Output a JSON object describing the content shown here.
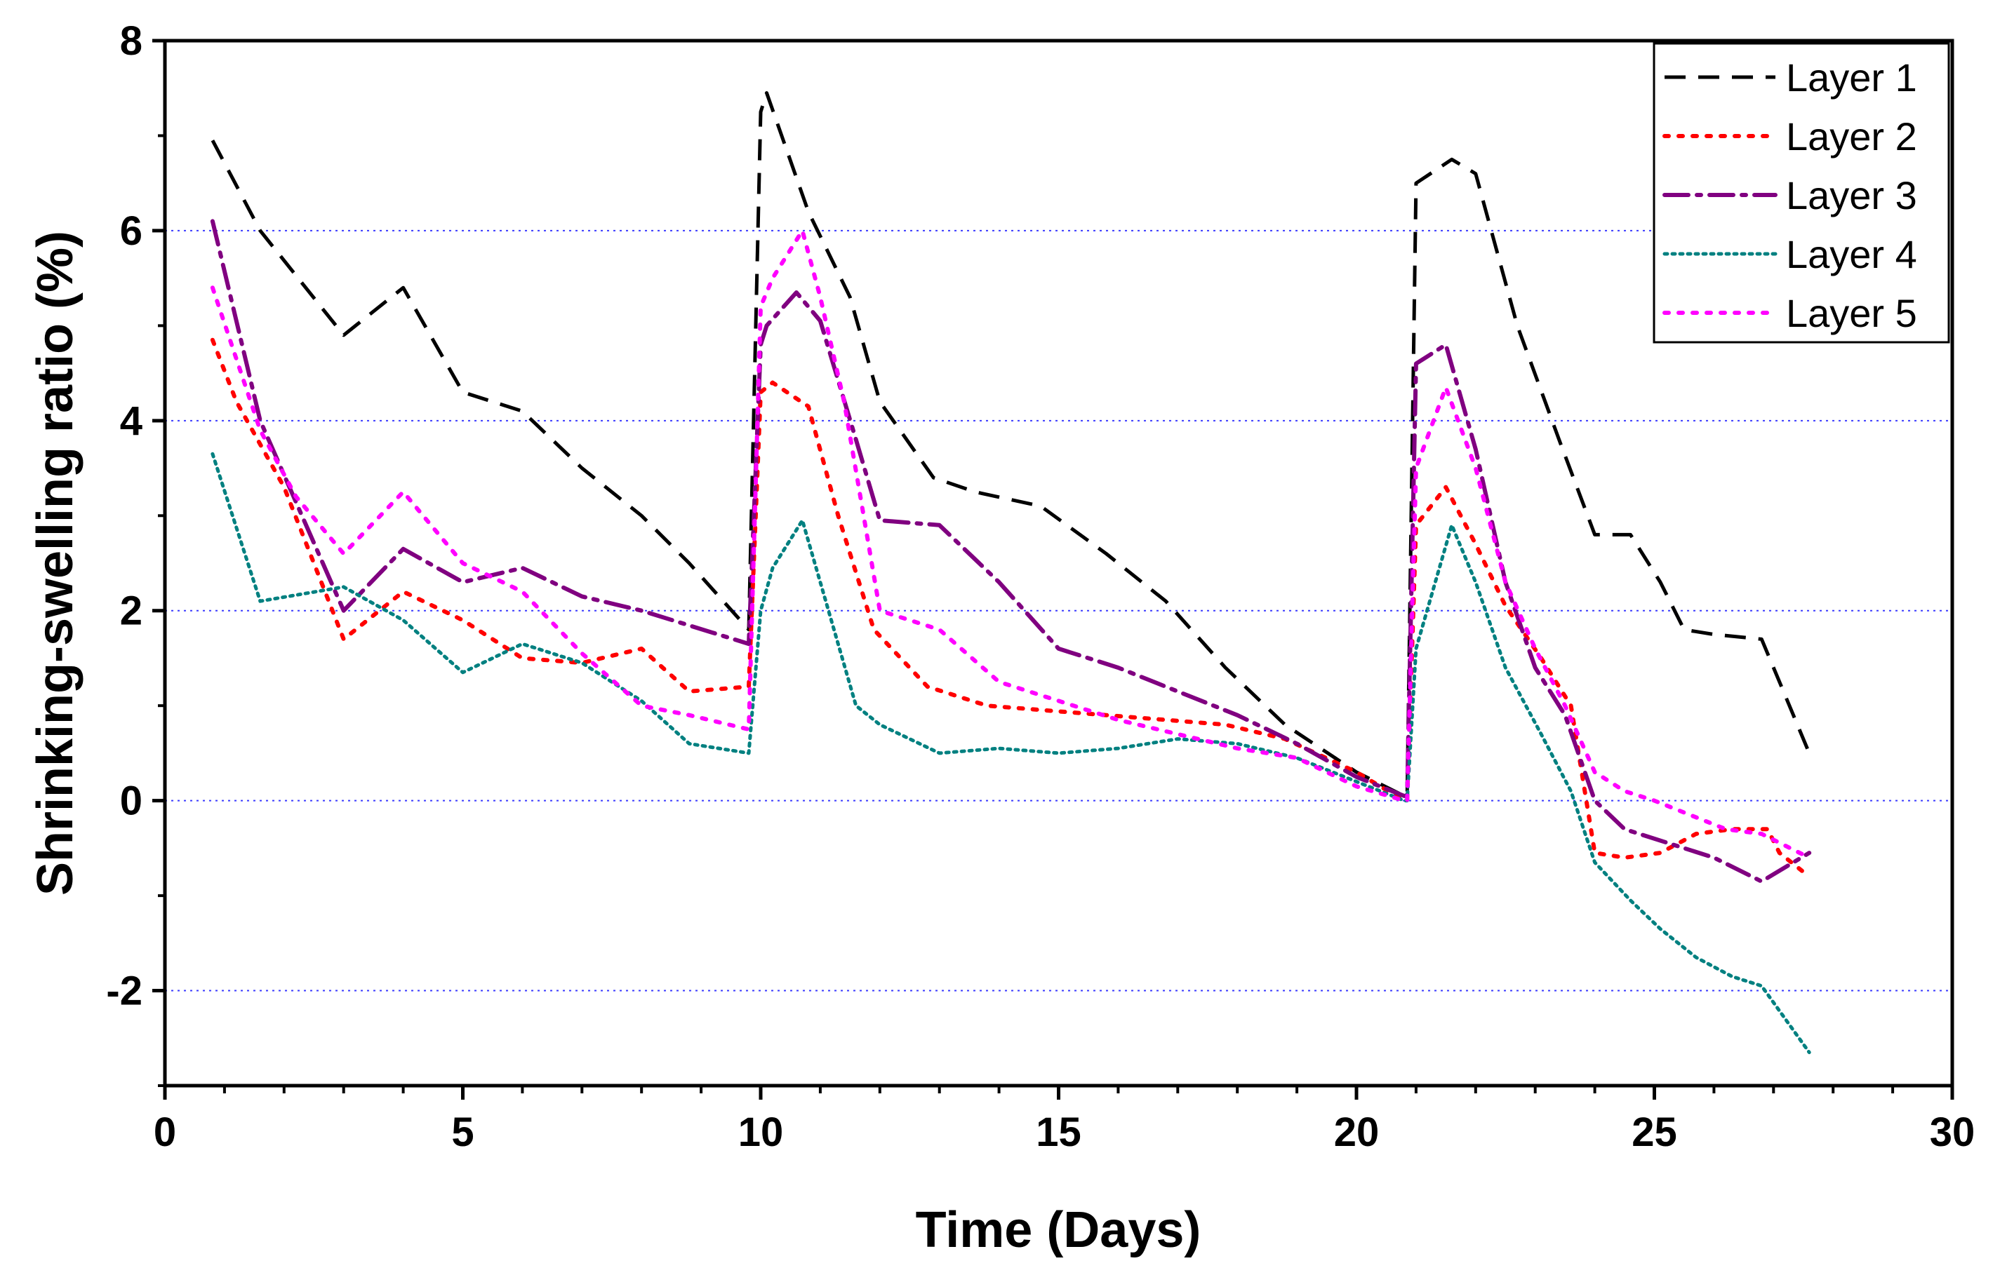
{
  "chart_data": {
    "type": "line",
    "title": "",
    "xlabel": "Time (Days)",
    "ylabel": "Shrinking-swelling  ratio (%)",
    "xlim": [
      0,
      30
    ],
    "ylim": [
      -3,
      8
    ],
    "xticks": [
      0,
      5,
      10,
      15,
      20,
      25,
      30
    ],
    "xtick_labels": [
      "0",
      "5",
      "10",
      "15",
      "20",
      "25",
      "30"
    ],
    "yticks": [
      -2,
      0,
      2,
      4,
      6,
      8
    ],
    "ytick_labels": [
      "-2",
      "0",
      "2",
      "4",
      "6",
      "8"
    ],
    "grid": "horizontal dotted at y = -2, 0, 2, 4, 6",
    "legend_position": "top-right",
    "series": [
      {
        "name": "Layer 1",
        "color": "#000000",
        "dash": "dash",
        "x": [
          0.8,
          1.6,
          3.0,
          4.0,
          5.0,
          6.0,
          7.0,
          8.0,
          8.8,
          9.8,
          10.0,
          10.1,
          10.8,
          11.5,
          12.0,
          12.9,
          13.6,
          14.7,
          15.8,
          16.8,
          17.8,
          18.8,
          20.0,
          20.8,
          20.85,
          21.0,
          21.6,
          22.0,
          22.7,
          23.4,
          24.0,
          24.6,
          25.1,
          25.5,
          26.0,
          26.8,
          27.1,
          27.6
        ],
        "y": [
          6.95,
          6.0,
          4.9,
          5.4,
          4.3,
          4.1,
          3.5,
          3.0,
          2.5,
          1.8,
          7.25,
          7.45,
          6.2,
          5.3,
          4.2,
          3.4,
          3.25,
          3.1,
          2.6,
          2.1,
          1.4,
          0.8,
          0.3,
          0.05,
          0.05,
          6.5,
          6.75,
          6.6,
          5.0,
          3.8,
          2.8,
          2.8,
          2.3,
          1.8,
          1.75,
          1.7,
          1.25,
          0.5
        ]
      },
      {
        "name": "Layer 2",
        "color": "#ff0000",
        "dash": "dot",
        "x": [
          0.8,
          1.2,
          2.0,
          3.0,
          4.0,
          5.0,
          6.0,
          7.0,
          8.0,
          8.8,
          9.8,
          10.0,
          10.2,
          10.8,
          11.3,
          11.9,
          12.8,
          13.8,
          14.8,
          15.8,
          16.8,
          17.8,
          18.8,
          20.0,
          20.8,
          20.85,
          21.0,
          21.5,
          22.0,
          22.5,
          23.1,
          23.6,
          24.0,
          24.5,
          25.1,
          25.7,
          26.3,
          26.9,
          27.1,
          27.6
        ],
        "y": [
          4.85,
          4.2,
          3.3,
          1.7,
          2.2,
          1.9,
          1.5,
          1.45,
          1.6,
          1.15,
          1.2,
          4.3,
          4.4,
          4.15,
          3.0,
          1.8,
          1.2,
          1.0,
          0.95,
          0.9,
          0.85,
          0.8,
          0.65,
          0.3,
          0.0,
          0.0,
          2.9,
          3.3,
          2.7,
          2.05,
          1.5,
          1.0,
          -0.55,
          -0.6,
          -0.55,
          -0.35,
          -0.3,
          -0.3,
          -0.55,
          -0.8
        ]
      },
      {
        "name": "Layer 3",
        "color": "#800080",
        "dash": "dashdot",
        "x": [
          0.8,
          1.6,
          3.0,
          4.0,
          5.0,
          6.0,
          7.0,
          8.0,
          9.8,
          10.0,
          10.1,
          10.6,
          11.0,
          11.6,
          12.0,
          13.0,
          14.0,
          15.0,
          16.0,
          17.0,
          18.0,
          19.0,
          20.0,
          20.8,
          20.85,
          21.0,
          21.5,
          22.0,
          22.5,
          23.0,
          23.5,
          24.0,
          24.5,
          25.5,
          26.0,
          26.8,
          27.6
        ],
        "y": [
          6.1,
          4.0,
          2.0,
          2.65,
          2.3,
          2.45,
          2.15,
          2.0,
          1.65,
          4.8,
          5.0,
          5.35,
          5.05,
          3.8,
          2.95,
          2.9,
          2.3,
          1.6,
          1.4,
          1.15,
          0.9,
          0.6,
          0.25,
          0.05,
          0.05,
          4.6,
          4.8,
          3.7,
          2.3,
          1.4,
          0.9,
          0.0,
          -0.3,
          -0.5,
          -0.6,
          -0.85,
          -0.55
        ]
      },
      {
        "name": "Layer 4",
        "color": "#008080",
        "dash": "fine-dot",
        "x": [
          0.8,
          1.6,
          3.0,
          4.0,
          5.0,
          6.0,
          7.0,
          8.0,
          8.8,
          9.8,
          10.0,
          10.2,
          10.7,
          11.0,
          11.6,
          12.0,
          13.0,
          14.0,
          15.0,
          16.0,
          17.0,
          18.0,
          19.0,
          20.0,
          20.8,
          20.85,
          21.0,
          21.6,
          22.0,
          22.5,
          23.1,
          23.6,
          24.0,
          24.6,
          25.1,
          25.7,
          26.3,
          26.8,
          27.6
        ],
        "y": [
          3.65,
          2.1,
          2.25,
          1.9,
          1.35,
          1.65,
          1.45,
          1.05,
          0.6,
          0.5,
          2.0,
          2.45,
          2.95,
          2.3,
          1.0,
          0.8,
          0.5,
          0.55,
          0.5,
          0.55,
          0.65,
          0.6,
          0.45,
          0.2,
          0.0,
          0.0,
          1.6,
          2.9,
          2.3,
          1.4,
          0.7,
          0.1,
          -0.65,
          -1.05,
          -1.35,
          -1.65,
          -1.85,
          -1.95,
          -2.65
        ]
      },
      {
        "name": "Layer 5",
        "color": "#ff00ff",
        "dash": "dot",
        "x": [
          0.8,
          1.6,
          2.2,
          3.0,
          4.0,
          5.0,
          6.0,
          7.0,
          8.0,
          8.8,
          9.8,
          10.0,
          10.2,
          10.7,
          11.0,
          11.4,
          12.0,
          13.0,
          14.0,
          15.0,
          16.0,
          17.0,
          18.0,
          19.0,
          20.0,
          20.8,
          20.85,
          21.0,
          21.5,
          22.0,
          22.5,
          23.0,
          23.5,
          24.0,
          24.5,
          25.0,
          25.6,
          26.2,
          26.8,
          27.6
        ],
        "y": [
          5.4,
          3.9,
          3.2,
          2.6,
          3.25,
          2.5,
          2.2,
          1.55,
          1.0,
          0.9,
          0.75,
          5.2,
          5.5,
          6.0,
          5.3,
          4.2,
          2.0,
          1.8,
          1.25,
          1.05,
          0.85,
          0.7,
          0.55,
          0.45,
          0.15,
          0.0,
          0.0,
          3.5,
          4.35,
          3.5,
          2.3,
          1.6,
          1.0,
          0.3,
          0.1,
          0.0,
          -0.15,
          -0.3,
          -0.35,
          -0.6
        ]
      }
    ]
  }
}
